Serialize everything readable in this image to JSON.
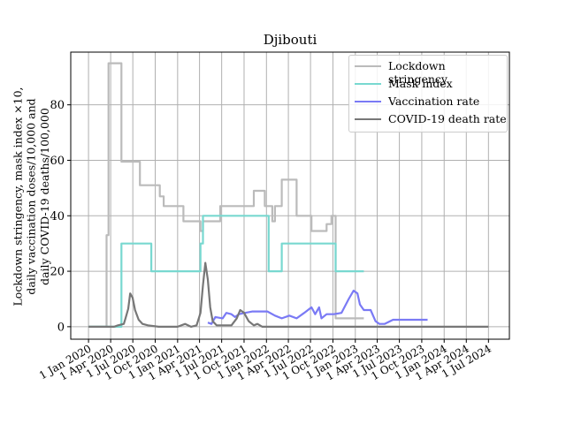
{
  "chart_data": {
    "type": "line",
    "title": "Djibouti",
    "ylabel_lines": [
      "Lockdown stringency, mask index ×10,",
      "daily vaccination doses/10,000 and",
      "daily COVID-19 deaths/100,000"
    ],
    "xlabel": "",
    "x_ticks": [
      "1 Jan 2020",
      "1 Apr 2020",
      "1 Jul 2020",
      "1 Oct 2020",
      "1 Jan 2021",
      "1 Apr 2021",
      "1 Jul 2021",
      "1 Oct 2021",
      "1 Jan 2022",
      "1 Apr 2022",
      "1 Jul 2022",
      "1 Oct 2022",
      "1 Jan 2023",
      "1 Apr 2023",
      "1 Jul 2023",
      "1 Oct 2023",
      "1 Jan 2024",
      "1 Apr 2024",
      "1 Jul 2024"
    ],
    "y_ticks": [
      0,
      20,
      40,
      60,
      80
    ],
    "xlim": [
      "2019-10-20",
      "2024-09-25"
    ],
    "ylim": [
      -4.5,
      99
    ],
    "grid": true,
    "legend_position": "top-right",
    "colors": {
      "lockdown": "#bbbbbb",
      "mask": "#78d8d0",
      "vaccination": "#7a7af5",
      "deaths": "#777777"
    },
    "series": [
      {
        "name": "Lockdown stringency",
        "key": "lockdown",
        "step": true,
        "points": [
          [
            "2020-01-01",
            0
          ],
          [
            "2020-03-10",
            0
          ],
          [
            "2020-03-15",
            33
          ],
          [
            "2020-03-23",
            95
          ],
          [
            "2020-05-15",
            59.5
          ],
          [
            "2020-07-30",
            51
          ],
          [
            "2020-10-20",
            47
          ],
          [
            "2020-11-05",
            43.5
          ],
          [
            "2021-01-25",
            38
          ],
          [
            "2021-04-05",
            34.5
          ],
          [
            "2021-04-15",
            38
          ],
          [
            "2021-06-25",
            43.5
          ],
          [
            "2021-11-10",
            49
          ],
          [
            "2021-12-25",
            43.5
          ],
          [
            "2022-01-25",
            38
          ],
          [
            "2022-02-05",
            43.5
          ],
          [
            "2022-03-05",
            53
          ],
          [
            "2022-05-05",
            40
          ],
          [
            "2022-07-05",
            34.5
          ],
          [
            "2022-09-05",
            37
          ],
          [
            "2022-09-25",
            40
          ],
          [
            "2022-10-12",
            3
          ],
          [
            "2023-02-05",
            3
          ]
        ]
      },
      {
        "name": "Mask index",
        "key": "mask",
        "step": true,
        "points": [
          [
            "2020-01-01",
            0
          ],
          [
            "2020-05-15",
            30
          ],
          [
            "2020-09-15",
            20
          ],
          [
            "2021-04-05",
            30
          ],
          [
            "2021-04-15",
            40
          ],
          [
            "2022-01-10",
            20
          ],
          [
            "2022-03-05",
            30
          ],
          [
            "2022-10-12",
            20
          ],
          [
            "2023-02-05",
            20
          ]
        ]
      },
      {
        "name": "Vaccination rate",
        "key": "vaccination",
        "step": false,
        "points": [
          [
            "2021-05-05",
            1.5
          ],
          [
            "2021-05-20",
            1.0
          ],
          [
            "2021-06-05",
            3.5
          ],
          [
            "2021-07-05",
            3.0
          ],
          [
            "2021-07-20",
            5.0
          ],
          [
            "2021-08-10",
            4.5
          ],
          [
            "2021-08-25",
            3.5
          ],
          [
            "2021-09-10",
            4.5
          ],
          [
            "2021-10-05",
            5.0
          ],
          [
            "2021-11-05",
            5.5
          ],
          [
            "2021-12-20",
            5.5
          ],
          [
            "2022-01-05",
            5.5
          ],
          [
            "2022-02-05",
            4.0
          ],
          [
            "2022-03-05",
            3.0
          ],
          [
            "2022-04-05",
            4.0
          ],
          [
            "2022-05-05",
            3.0
          ],
          [
            "2022-06-05",
            5.0
          ],
          [
            "2022-07-05",
            7.0
          ],
          [
            "2022-07-20",
            4.5
          ],
          [
            "2022-08-05",
            7.0
          ],
          [
            "2022-08-15",
            3.0
          ],
          [
            "2022-09-05",
            4.5
          ],
          [
            "2022-10-05",
            4.5
          ],
          [
            "2022-11-05",
            5.0
          ],
          [
            "2022-12-05",
            10.0
          ],
          [
            "2022-12-25",
            13.0
          ],
          [
            "2023-01-10",
            12.0
          ],
          [
            "2023-01-20",
            8.0
          ],
          [
            "2023-02-05",
            6.0
          ],
          [
            "2023-03-05",
            6.0
          ],
          [
            "2023-03-25",
            2.0
          ],
          [
            "2023-04-10",
            1.0
          ],
          [
            "2023-05-01",
            1.0
          ],
          [
            "2023-06-05",
            2.5
          ],
          [
            "2023-10-25",
            2.5
          ]
        ]
      },
      {
        "name": "COVID-19 death rate",
        "key": "deaths",
        "step": false,
        "points": [
          [
            "2020-01-01",
            0
          ],
          [
            "2020-04-15",
            0
          ],
          [
            "2020-05-01",
            0.5
          ],
          [
            "2020-05-25",
            1.0
          ],
          [
            "2020-06-01",
            3.0
          ],
          [
            "2020-06-12",
            6.5
          ],
          [
            "2020-06-20",
            12.0
          ],
          [
            "2020-06-30",
            10.5
          ],
          [
            "2020-07-10",
            6.0
          ],
          [
            "2020-07-25",
            2.5
          ],
          [
            "2020-08-10",
            1.0
          ],
          [
            "2020-09-01",
            0.5
          ],
          [
            "2020-10-15",
            0
          ],
          [
            "2021-01-01",
            0
          ],
          [
            "2021-02-01",
            1.0
          ],
          [
            "2021-02-25",
            0
          ],
          [
            "2021-03-20",
            0.5
          ],
          [
            "2021-04-05",
            5.0
          ],
          [
            "2021-04-15",
            15.0
          ],
          [
            "2021-04-25",
            23.0
          ],
          [
            "2021-05-05",
            17.0
          ],
          [
            "2021-05-15",
            7.0
          ],
          [
            "2021-05-25",
            2.0
          ],
          [
            "2021-06-10",
            0.5
          ],
          [
            "2021-07-10",
            0.5
          ],
          [
            "2021-08-10",
            0.5
          ],
          [
            "2021-09-01",
            3.0
          ],
          [
            "2021-09-15",
            6.0
          ],
          [
            "2021-10-01",
            5.0
          ],
          [
            "2021-10-20",
            2.0
          ],
          [
            "2021-11-10",
            0.5
          ],
          [
            "2021-11-25",
            1.0
          ],
          [
            "2021-12-15",
            0
          ],
          [
            "2023-10-25",
            0
          ],
          [
            "2024-07-01",
            0
          ]
        ]
      }
    ]
  }
}
